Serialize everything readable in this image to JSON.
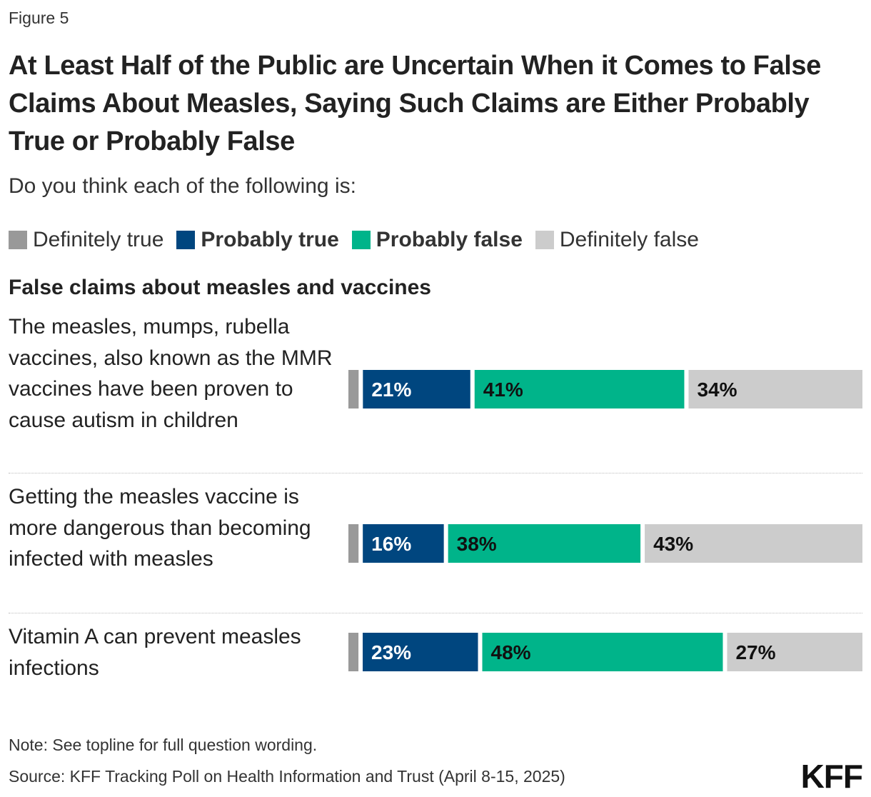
{
  "figure_label": "Figure 5",
  "title": "At Least Half of the Public are Uncertain When it Comes to False Claims About Measles, Saying Such Claims are Either Probably True or Probably False",
  "subtitle": "Do you think each of the following is:",
  "section_title": "False claims about measles and vaccines",
  "note": "Note: See topline for full question wording.",
  "source": "Source: KFF Tracking Poll on Health Information and Trust (April 8-15, 2025)",
  "logo_text": "KFF",
  "legend": [
    {
      "label": "Definitely true",
      "color": "#999999",
      "bold": false
    },
    {
      "label": "Probably true",
      "color": "#00467f",
      "bold": true
    },
    {
      "label": "Probably false",
      "color": "#00b48a",
      "bold": true
    },
    {
      "label": "Definitely false",
      "color": "#cccccc",
      "bold": false
    }
  ],
  "chart_data": {
    "type": "bar",
    "orientation": "horizontal",
    "stacked": true,
    "title": "At Least Half of the Public are Uncertain When it Comes to False Claims About Measles, Saying Such Claims are Either Probably True or Probably False",
    "categories": [
      "The measles, mumps, rubella vaccines, also known as the MMR vaccines have been proven to cause autism in children",
      "Getting the measles vaccine is more dangerous than becoming infected with measles",
      "Vitamin A can prevent measles infections"
    ],
    "series": [
      {
        "name": "Definitely true",
        "color": "#999999",
        "values": [
          2,
          2,
          2
        ],
        "labels": [
          "",
          "",
          ""
        ],
        "label_color": "#ffffff"
      },
      {
        "name": "Probably true",
        "color": "#00467f",
        "values": [
          21,
          16,
          23
        ],
        "labels": [
          "21%",
          "16%",
          "23%"
        ],
        "label_color": "#ffffff"
      },
      {
        "name": "Probably false",
        "color": "#00b48a",
        "values": [
          41,
          38,
          48
        ],
        "labels": [
          "41%",
          "38%",
          "48%"
        ],
        "label_color": "#111111"
      },
      {
        "name": "Definitely false",
        "color": "#cccccc",
        "values": [
          34,
          43,
          27
        ],
        "labels": [
          "34%",
          "43%",
          "27%"
        ],
        "label_color": "#111111"
      }
    ],
    "xlim": [
      0,
      100
    ],
    "legend_position": "top-left",
    "grid": false
  }
}
